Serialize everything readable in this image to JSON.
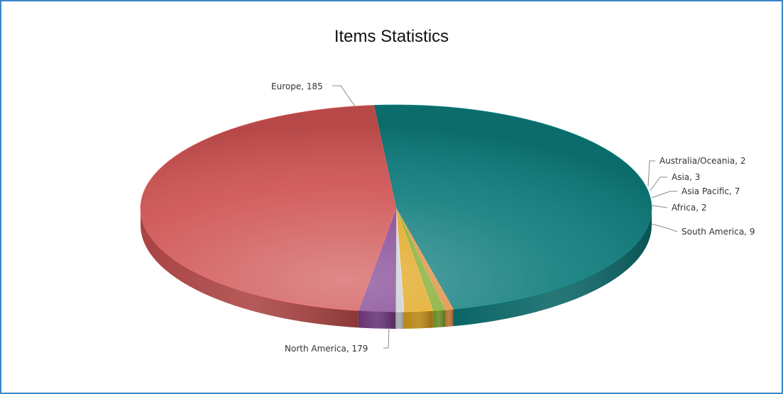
{
  "chart_data": {
    "type": "pie",
    "title": "Items Statistics",
    "slices": [
      {
        "label": "Europe",
        "value": 185,
        "color": "#0d7b7b",
        "display": "Europe, 185"
      },
      {
        "label": "Australia/Oceania",
        "value": 2,
        "color": "#e08a3c",
        "display": "Australia/Oceania, 2"
      },
      {
        "label": "Asia",
        "value": 3,
        "color": "#7fa82a",
        "display": "Asia, 3"
      },
      {
        "label": "Asia Pacific",
        "value": 7,
        "color": "#e0a318",
        "display": "Asia Pacific, 7"
      },
      {
        "label": "Africa",
        "value": 2,
        "color": "#c8ccd2",
        "display": "Africa, 2"
      },
      {
        "label": "South America",
        "value": 9,
        "color": "#7d3e8e",
        "display": "South America, 9"
      },
      {
        "label": "North America",
        "value": 179,
        "color": "#cf5252",
        "display": "North America, 179"
      }
    ]
  }
}
